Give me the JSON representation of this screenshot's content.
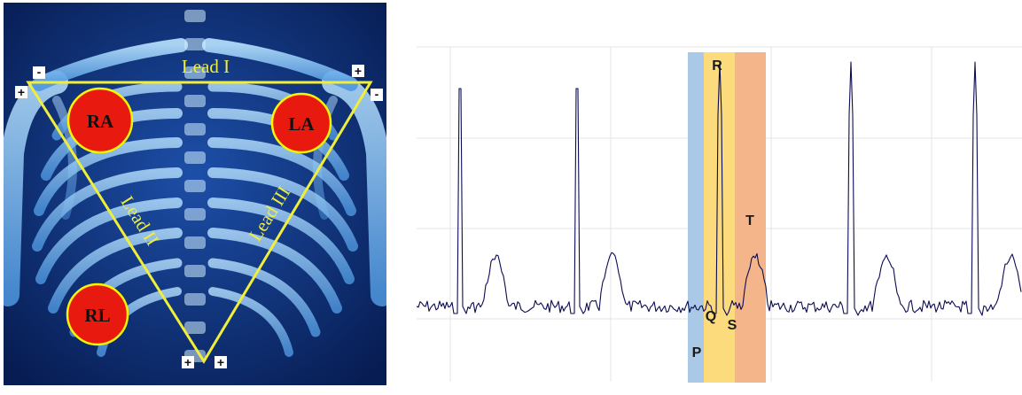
{
  "electrodes": {
    "ra": "RA",
    "la": "LA",
    "rl": "RL"
  },
  "leads": {
    "lead_1": "Lead I",
    "lead_2": "Lead II",
    "lead_3": "Lead III"
  },
  "polarity": {
    "lead1_right_end": "-",
    "lead1_left_end": "+",
    "lead1_right_arm": "+",
    "lead3_left_end": "-",
    "lead2_bottom": "+",
    "lead3_bottom": "+"
  },
  "ecg": {
    "waves": {
      "p": "P",
      "q": "Q",
      "r": "R",
      "s": "S",
      "t": "T"
    },
    "segment_colors": {
      "p": "#a9c9e6",
      "qrs": "#fbdb7c",
      "t": "#f5b58a"
    }
  },
  "colors": {
    "background_left": "#0b2a6e",
    "bone": "#5fa6e6",
    "triangle": "#f0ee3a",
    "electrode_fill": "#e8190f",
    "electrode_stroke": "#f6f600",
    "trace": "#0c0c52"
  }
}
